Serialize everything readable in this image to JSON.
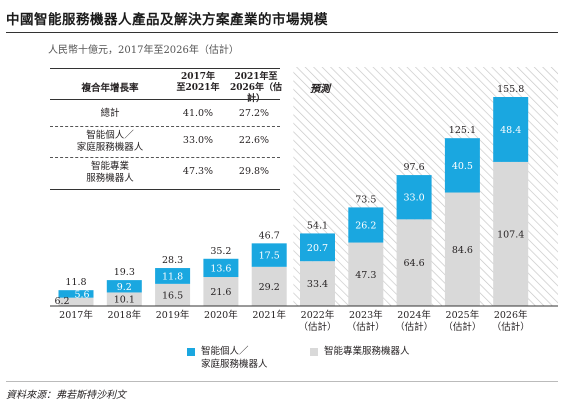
{
  "title": "中國智能服務機器人產品及解決方案產業的市場規模",
  "unit_label": "人民幣十億元，2017年至2026年（估計）",
  "forecast_label": "預測",
  "source": "資料來源：弗若斯特沙利文",
  "cagr_table": {
    "header": "複合年增長率",
    "col1_line1": "2017年",
    "col1_line2": "至2021年",
    "col2_line1": "2021年至",
    "col2_line2": "2026年（估計）",
    "rows": [
      {
        "label_line1": "總計",
        "label_line2": "",
        "v1": "41.0%",
        "v2": "27.2%"
      },
      {
        "label_line1": "智能個人／",
        "label_line2": "家庭服務機器人",
        "v1": "33.0%",
        "v2": "22.6%"
      },
      {
        "label_line1": "智能專業",
        "label_line2": "服務機器人",
        "v1": "47.3%",
        "v2": "29.8%"
      }
    ]
  },
  "legend": {
    "blue_line1": "智能個人／",
    "blue_line2": "家庭服務機器人",
    "grey_label": "智能專業服務機器人"
  },
  "colors": {
    "blue": "#1aa7e0",
    "grey": "#d9d9d9",
    "hatch": "#bdbdbd"
  },
  "chart_data": {
    "type": "bar",
    "stacked": true,
    "categories": [
      [
        "2017年"
      ],
      [
        "2018年"
      ],
      [
        "2019年"
      ],
      [
        "2020年"
      ],
      [
        "2021年"
      ],
      [
        "2022年",
        "（估計）"
      ],
      [
        "2023年",
        "（估計）"
      ],
      [
        "2024年",
        "（估計）"
      ],
      [
        "2025年",
        "（估計）"
      ],
      [
        "2026年",
        "（估計）"
      ]
    ],
    "series": [
      {
        "name": "智能專業服務機器人",
        "color": "#d9d9d9",
        "values": [
          6.2,
          10.1,
          16.5,
          21.6,
          29.2,
          33.4,
          47.3,
          64.6,
          84.6,
          107.4
        ]
      },
      {
        "name": "智能個人／家庭服務機器人",
        "color": "#1aa7e0",
        "values": [
          5.6,
          9.2,
          11.8,
          13.6,
          17.5,
          20.7,
          26.2,
          33.0,
          40.5,
          48.4
        ]
      }
    ],
    "totals": [
      11.8,
      19.3,
      28.3,
      35.2,
      46.7,
      54.1,
      73.5,
      97.6,
      125.1,
      155.8
    ],
    "forecast_from_index": 5,
    "ylim": [
      0,
      160
    ]
  }
}
